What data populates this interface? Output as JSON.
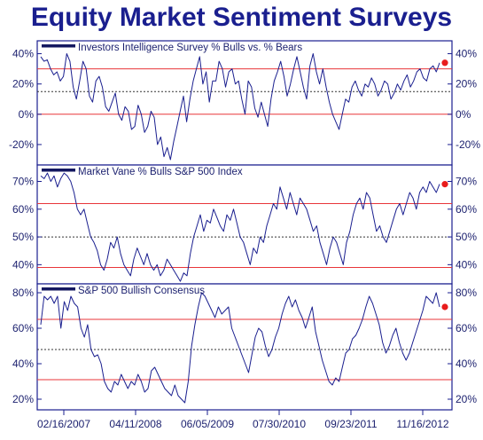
{
  "title": "Equity Market Sentiment Surveys",
  "colors": {
    "series": "#1a1f8f",
    "ref_line": "#e8363a",
    "dot": "#e81c1c",
    "frame": "#1a1f8f",
    "title": "#1a1f8f"
  },
  "chart_data": [
    {
      "type": "line",
      "legend": "Investors Intelligence Survey % Bulls vs. % Bears",
      "ylim": [
        -30,
        45
      ],
      "yticks": [
        40,
        20,
        0,
        -20
      ],
      "ytick_labels": [
        "40%",
        "20%",
        "0%",
        "-20%"
      ],
      "ref_lines": [
        {
          "y": 30,
          "style": "solid"
        },
        {
          "y": 15,
          "style": "dotted"
        },
        {
          "y": 0,
          "style": "solid"
        }
      ],
      "last_point": 34,
      "series": [
        {
          "values": [
            38,
            35,
            36,
            30,
            26,
            28,
            22,
            25,
            40,
            35,
            18,
            10,
            22,
            35,
            30,
            12,
            8,
            22,
            25,
            18,
            5,
            2,
            8,
            14,
            0,
            -4,
            5,
            2,
            -10,
            -8,
            6,
            0,
            -12,
            -8,
            2,
            -2,
            -20,
            -15,
            -28,
            -22,
            -30,
            -18,
            -8,
            2,
            12,
            -5,
            10,
            22,
            30,
            38,
            20,
            28,
            8,
            22,
            22,
            35,
            30,
            18,
            28,
            30,
            20,
            22,
            10,
            0,
            22,
            18,
            4,
            -2,
            8,
            0,
            -8,
            10,
            22,
            28,
            35,
            25,
            12,
            20,
            30,
            38,
            28,
            18,
            10,
            32,
            40,
            28,
            20,
            30,
            18,
            8,
            0,
            -5,
            -10,
            0,
            10,
            8,
            18,
            22,
            16,
            12,
            20,
            18,
            24,
            20,
            12,
            16,
            22,
            20,
            10,
            14,
            20,
            16,
            22,
            26,
            18,
            22,
            28,
            30,
            24,
            22,
            30,
            32,
            28,
            34
          ]
        }
      ]
    },
    {
      "type": "line",
      "legend": "Market Vane % Bulls S&P 500 Index",
      "ylim": [
        35,
        74
      ],
      "yticks": [
        70,
        60,
        50,
        40
      ],
      "ytick_labels": [
        "70%",
        "60%",
        "50%",
        "40%"
      ],
      "ref_lines": [
        {
          "y": 62,
          "style": "solid"
        },
        {
          "y": 50,
          "style": "dotted"
        },
        {
          "y": 39,
          "style": "solid"
        }
      ],
      "last_point": 69,
      "series": [
        {
          "values": [
            72,
            71,
            73,
            70,
            72,
            68,
            71,
            73,
            72,
            70,
            66,
            60,
            58,
            60,
            55,
            50,
            48,
            45,
            40,
            38,
            42,
            48,
            46,
            50,
            44,
            40,
            38,
            36,
            42,
            46,
            43,
            40,
            44,
            40,
            38,
            40,
            36,
            38,
            42,
            40,
            38,
            36,
            34,
            37,
            36,
            44,
            50,
            54,
            58,
            52,
            56,
            55,
            60,
            57,
            54,
            52,
            58,
            56,
            60,
            55,
            50,
            48,
            44,
            40,
            46,
            44,
            50,
            48,
            54,
            58,
            62,
            60,
            68,
            64,
            60,
            66,
            62,
            58,
            64,
            62,
            60,
            56,
            52,
            54,
            48,
            44,
            40,
            46,
            50,
            48,
            44,
            40,
            48,
            52,
            58,
            62,
            64,
            60,
            66,
            64,
            58,
            52,
            54,
            50,
            48,
            52,
            56,
            60,
            62,
            58,
            62,
            66,
            64,
            60,
            66,
            68,
            66,
            70,
            68,
            66,
            69
          ]
        }
      ]
    },
    {
      "type": "line",
      "legend": "S&P 500 Bullish Consensus",
      "ylim": [
        17,
        82
      ],
      "yticks": [
        80,
        60,
        40,
        20
      ],
      "ytick_labels": [
        "80%",
        "60%",
        "40%",
        "20%"
      ],
      "ref_lines": [
        {
          "y": 65,
          "style": "solid"
        },
        {
          "y": 48,
          "style": "dotted"
        },
        {
          "y": 31,
          "style": "solid"
        }
      ],
      "last_point": 72,
      "series": [
        {
          "values": [
            62,
            78,
            76,
            78,
            74,
            78,
            60,
            75,
            70,
            78,
            74,
            72,
            60,
            55,
            62,
            48,
            44,
            45,
            40,
            30,
            26,
            24,
            30,
            28,
            34,
            30,
            26,
            30,
            28,
            34,
            30,
            24,
            26,
            36,
            38,
            34,
            30,
            26,
            24,
            22,
            28,
            22,
            20,
            18,
            30,
            50,
            62,
            72,
            80,
            78,
            74,
            70,
            66,
            72,
            68,
            70,
            72,
            60,
            55,
            50,
            45,
            40,
            35,
            45,
            55,
            60,
            58,
            50,
            44,
            48,
            55,
            60,
            68,
            74,
            78,
            72,
            76,
            70,
            66,
            60,
            66,
            72,
            58,
            50,
            42,
            36,
            30,
            28,
            32,
            30,
            38,
            46,
            48,
            54,
            56,
            60,
            65,
            72,
            78,
            74,
            68,
            62,
            52,
            46,
            50,
            56,
            60,
            52,
            46,
            42,
            46,
            52,
            58,
            64,
            70,
            78,
            76,
            74,
            80,
            72
          ]
        }
      ]
    }
  ],
  "x_axis": {
    "labels": [
      "02/16/2007",
      "04/11/2008",
      "06/05/2009",
      "07/30/2010",
      "09/23/2011",
      "11/16/2012"
    ]
  }
}
